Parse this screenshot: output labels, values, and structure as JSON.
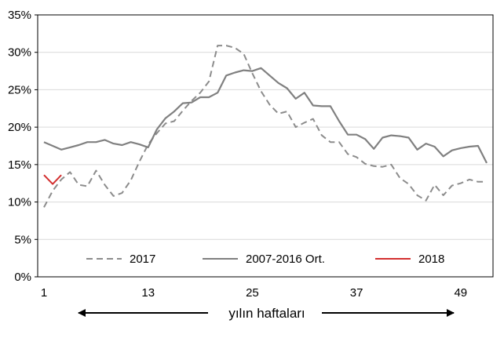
{
  "chart_data": {
    "type": "line",
    "xlabel": "yılın haftaları",
    "ylabel": "",
    "x_ticks": [
      1,
      13,
      25,
      37,
      49
    ],
    "xlim": [
      1,
      52
    ],
    "ylim": [
      0,
      35
    ],
    "y_ticks": [
      0,
      5,
      10,
      15,
      20,
      25,
      30,
      35
    ],
    "y_tick_labels": [
      "0%",
      "5%",
      "10%",
      "15%",
      "20%",
      "25%",
      "30%",
      "35%"
    ],
    "grid": "horizontal",
    "legend": "bottom-inside",
    "series": [
      {
        "name": "2017",
        "style": "dashed",
        "color": "#8c8c8c",
        "x": [
          1,
          2,
          3,
          4,
          5,
          6,
          7,
          8,
          9,
          10,
          11,
          12,
          13,
          14,
          15,
          16,
          17,
          18,
          19,
          20,
          21,
          22,
          23,
          24,
          25,
          26,
          27,
          28,
          29,
          30,
          31,
          32,
          33,
          34,
          35,
          36,
          37,
          38,
          39,
          40,
          41,
          42,
          43,
          44,
          45,
          46,
          47,
          48,
          49,
          50,
          51,
          52
        ],
        "values": [
          9.3,
          11.5,
          13.0,
          14.0,
          12.3,
          12.1,
          14.2,
          12.3,
          10.8,
          11.2,
          12.9,
          15.4,
          17.7,
          19.2,
          20.5,
          20.8,
          22.2,
          23.5,
          24.6,
          26.1,
          30.9,
          30.9,
          30.6,
          29.8,
          27.2,
          24.8,
          23.0,
          21.8,
          22.1,
          20.0,
          20.6,
          21.1,
          18.9,
          18.0,
          18.0,
          16.4,
          16.0,
          15.1,
          14.8,
          14.7,
          15.0,
          13.2,
          12.4,
          10.9,
          10.2,
          12.3,
          10.9,
          12.2,
          12.5,
          13.0,
          12.7,
          12.7
        ]
      },
      {
        "name": "2007-2016 Ort.",
        "style": "solid",
        "color": "#808080",
        "x": [
          1,
          2,
          3,
          4,
          5,
          6,
          7,
          8,
          9,
          10,
          11,
          12,
          13,
          14,
          15,
          16,
          17,
          18,
          19,
          20,
          21,
          22,
          23,
          24,
          25,
          26,
          27,
          28,
          29,
          30,
          31,
          32,
          33,
          34,
          35,
          36,
          37,
          38,
          39,
          40,
          41,
          42,
          43,
          44,
          45,
          46,
          47,
          48,
          49,
          50,
          51,
          52
        ],
        "values": [
          18.0,
          17.5,
          17.0,
          17.3,
          17.6,
          18.0,
          18.0,
          18.3,
          17.8,
          17.6,
          18.0,
          17.7,
          17.3,
          19.7,
          21.2,
          22.1,
          23.2,
          23.3,
          24.0,
          24.0,
          24.6,
          26.9,
          27.3,
          27.6,
          27.5,
          27.9,
          26.9,
          25.9,
          25.2,
          23.8,
          24.6,
          22.9,
          22.8,
          22.8,
          20.8,
          19.0,
          19.0,
          18.4,
          17.1,
          18.6,
          18.9,
          18.8,
          18.6,
          17.0,
          17.8,
          17.4,
          16.1,
          16.9,
          17.2,
          17.4,
          17.5,
          15.2
        ]
      },
      {
        "name": "2018",
        "style": "solid",
        "color": "#d32f2f",
        "x": [
          1,
          2,
          3
        ],
        "values": [
          13.6,
          12.4,
          13.6
        ]
      }
    ]
  }
}
